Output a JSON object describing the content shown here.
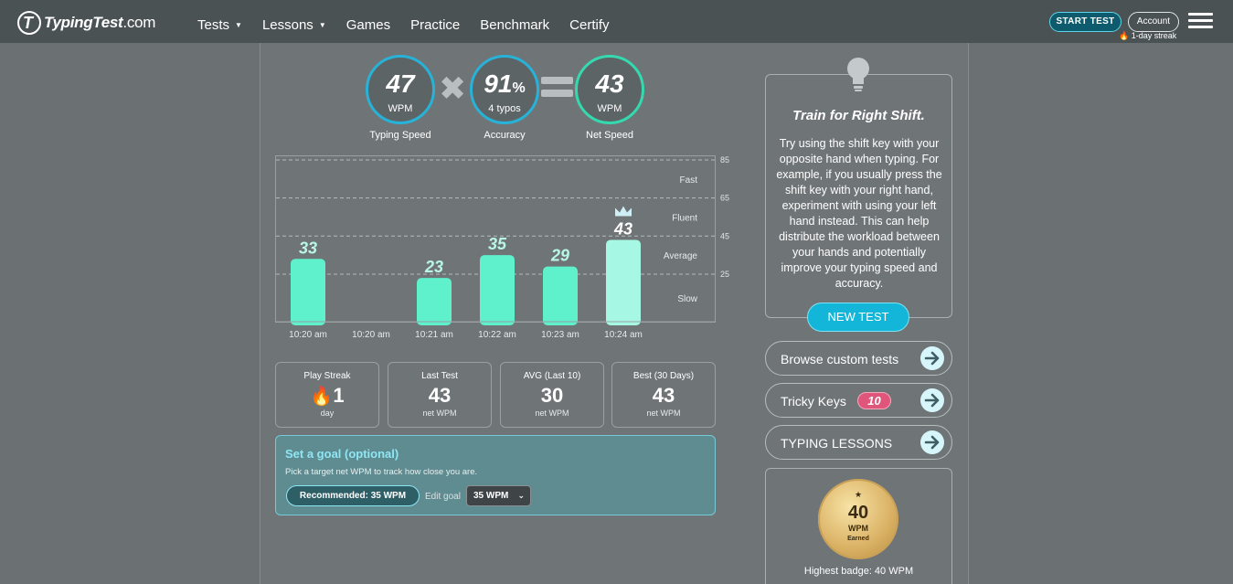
{
  "header": {
    "logo_text": "TypingTest",
    "logo_suffix": ".com",
    "nav": [
      "Tests",
      "Lessons",
      "Games",
      "Practice",
      "Benchmark",
      "Certify"
    ],
    "start_test": "START TEST",
    "account": "Account",
    "streak": "1-day streak"
  },
  "metrics": {
    "speed": {
      "value": "47",
      "unit": "WPM",
      "label": "Typing Speed"
    },
    "accuracy": {
      "value": "91",
      "pct": "%",
      "unit": "4 typos",
      "label": "Accuracy"
    },
    "net": {
      "value": "43",
      "unit": "WPM",
      "label": "Net Speed"
    }
  },
  "chart_data": {
    "type": "bar",
    "categories": [
      "10:20 am",
      "10:20 am",
      "10:21 am",
      "10:22 am",
      "10:23 am",
      "10:24 am"
    ],
    "values": [
      33,
      null,
      23,
      35,
      29,
      43
    ],
    "best_index": 5,
    "ylim": [
      0,
      85
    ],
    "thresholds": [
      25,
      45,
      65,
      85
    ],
    "zones": [
      "Slow",
      "Average",
      "Fluent",
      "Fast"
    ],
    "colors": {
      "bar": "#5ff0cc",
      "best": "#a6f7e3",
      "grid": "#b6bcbe"
    }
  },
  "stats": [
    {
      "title": "Play Streak",
      "value": "1",
      "sub": "day"
    },
    {
      "title": "Last Test",
      "value": "43",
      "sub": "net WPM"
    },
    {
      "title": "AVG (Last 10)",
      "value": "30",
      "sub": "net WPM"
    },
    {
      "title": "Best (30 Days)",
      "value": "43",
      "sub": "net WPM"
    }
  ],
  "goal": {
    "title": "Set a goal (optional)",
    "desc": "Pick a target net WPM to track how close you are.",
    "recommended": "Recommended: 35 WPM",
    "edit_label": "Edit goal",
    "selected": "35 WPM"
  },
  "tip": {
    "title": "Train for Right Shift.",
    "text": "Try using the shift key with your opposite hand when typing. For example, if you usually press the shift key with your right hand, experiment with using your left hand instead. This can help distribute the workload between your hands and potentially improve your typing speed and accuracy.",
    "new_test": "NEW TEST"
  },
  "side": {
    "browse": "Browse custom tests",
    "tricky": "Tricky Keys",
    "tricky_count": "10",
    "lessons": "TYPING LESSONS"
  },
  "badge": {
    "star": "★",
    "value": "40",
    "unit": "WPM",
    "earned": "Earned",
    "caption": "Highest badge: 40 WPM"
  }
}
